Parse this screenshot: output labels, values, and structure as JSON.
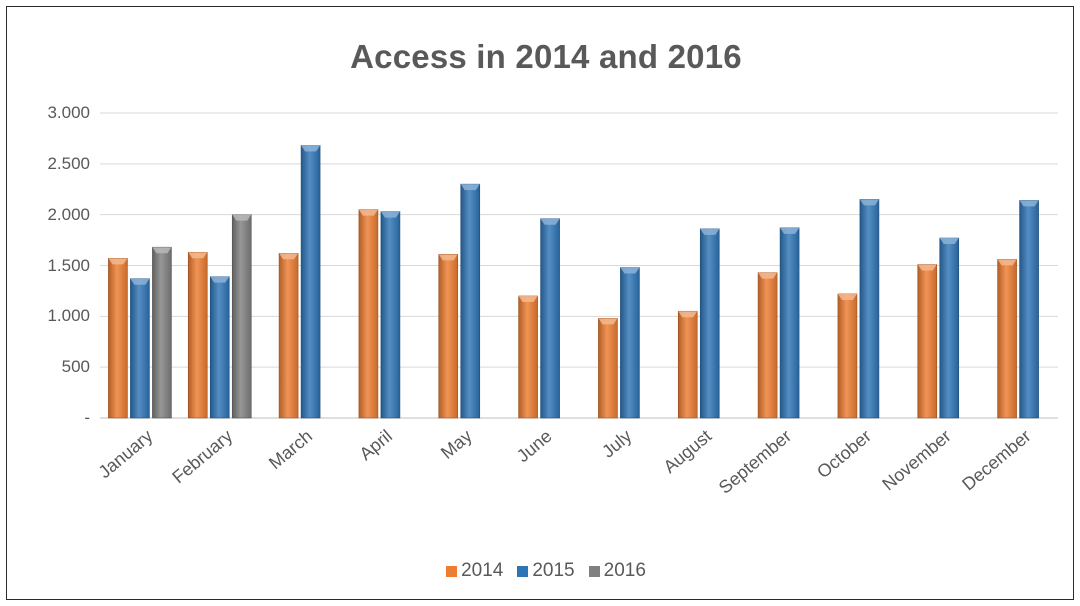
{
  "chart_data": {
    "type": "bar",
    "title": "Access in 2014 and 2016",
    "xlabel": "",
    "ylabel": "",
    "ylim": [
      0,
      3000
    ],
    "yticks": [
      {
        "value": 0,
        "label": "-"
      },
      {
        "value": 500,
        "label": "500"
      },
      {
        "value": 1000,
        "label": "1.000"
      },
      {
        "value": 1500,
        "label": "1.500"
      },
      {
        "value": 2000,
        "label": "2.000"
      },
      {
        "value": 2500,
        "label": "2.500"
      },
      {
        "value": 3000,
        "label": "3.000"
      }
    ],
    "grid": true,
    "legend_position": "bottom",
    "categories": [
      "January",
      "February",
      "March",
      "April",
      "May",
      "June",
      "July",
      "August",
      "September",
      "October",
      "November",
      "December"
    ],
    "series": [
      {
        "name": "2014",
        "color": "#ED7D31",
        "values": [
          1570,
          1630,
          1620,
          2050,
          1610,
          1200,
          980,
          1050,
          1430,
          1220,
          1510,
          1560
        ]
      },
      {
        "name": "2015",
        "color": "#2E75B6",
        "values": [
          1370,
          1390,
          2680,
          2030,
          2300,
          1960,
          1480,
          1860,
          1870,
          2150,
          1770,
          2140
        ]
      },
      {
        "name": "2016",
        "color": "#808080",
        "values": [
          1680,
          2000,
          null,
          null,
          null,
          null,
          null,
          null,
          null,
          null,
          null,
          null
        ]
      }
    ]
  }
}
